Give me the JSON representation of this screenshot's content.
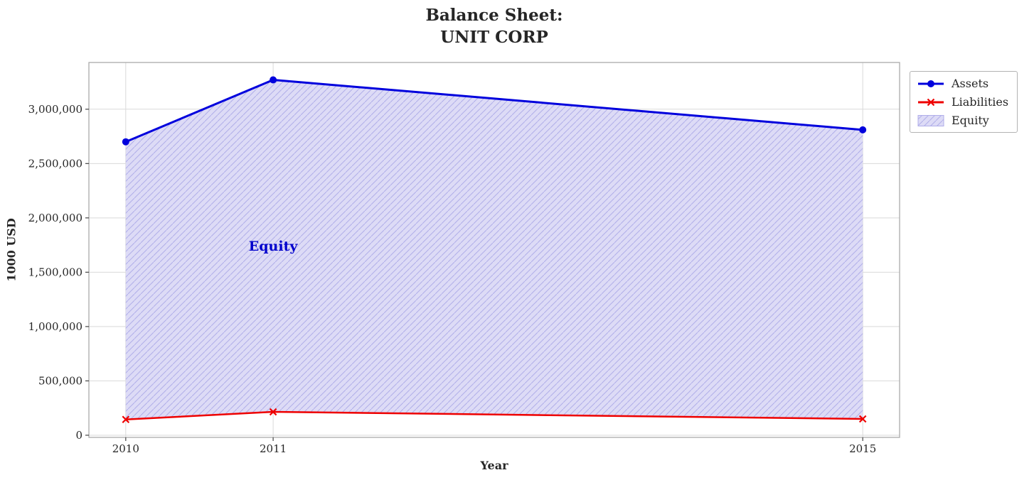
{
  "title": "Balance Sheet:\nUNIT CORP",
  "chart_data": {
    "type": "line",
    "title": "Balance Sheet:\nUNIT CORP",
    "xlabel": "Year",
    "ylabel": "1000 USD",
    "x": [
      2010,
      2011,
      2015
    ],
    "x_tick_labels": [
      "2010",
      "2011",
      "2015"
    ],
    "y_ticks": [
      0,
      500000,
      1000000,
      1500000,
      2000000,
      2500000,
      3000000
    ],
    "y_tick_labels": [
      "0",
      "500,000",
      "1,000,000",
      "1,500,000",
      "2,000,000",
      "2,500,000",
      "3,000,000"
    ],
    "xlim": [
      2009.75,
      2015.25
    ],
    "ylim": [
      -20000,
      3430000
    ],
    "grid": true,
    "legend_position": "upper-right-outside",
    "series": [
      {
        "name": "Assets",
        "marker": "circle",
        "color": "#0000dd",
        "values": [
          2700000,
          3270000,
          2810000
        ]
      },
      {
        "name": "Liabilities",
        "marker": "x",
        "color": "#ee0000",
        "values": [
          145000,
          215000,
          150000
        ]
      }
    ],
    "area": {
      "name": "Equity",
      "between": [
        "Assets",
        "Liabilities"
      ],
      "fill_color": "#dddbf6",
      "hatch_color": "#b0aeea",
      "hatch": "///",
      "annotation": {
        "text": "Equity",
        "x": 2011,
        "y": 1740000,
        "color": "#0000cc"
      }
    }
  }
}
